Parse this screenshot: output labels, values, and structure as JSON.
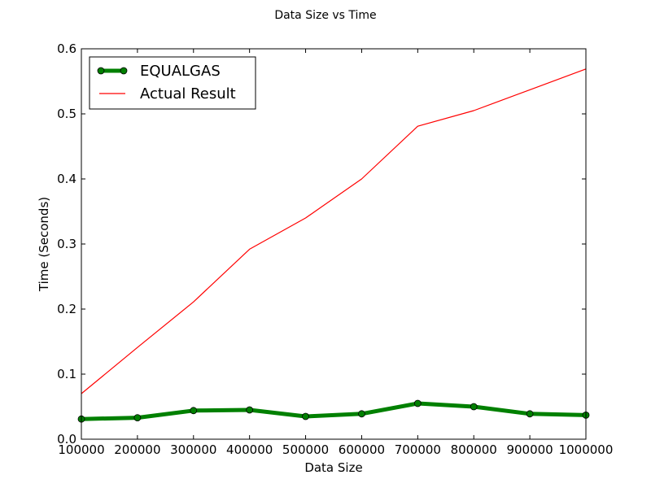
{
  "chart_data": {
    "type": "line",
    "title": "Data Size vs Time",
    "xlabel": "Data Size",
    "ylabel": "Time (Seconds)",
    "xlim": [
      100000,
      1000000
    ],
    "ylim": [
      0.0,
      0.6
    ],
    "xticks": [
      100000,
      200000,
      300000,
      400000,
      500000,
      600000,
      700000,
      800000,
      900000,
      1000000
    ],
    "xtick_labels": [
      "100000",
      "200000",
      "300000",
      "400000",
      "500000",
      "600000",
      "700000",
      "800000",
      "900000",
      "1000000"
    ],
    "yticks": [
      0.0,
      0.1,
      0.2,
      0.3,
      0.4,
      0.5,
      0.6
    ],
    "ytick_labels": [
      "0.0",
      "0.1",
      "0.2",
      "0.3",
      "0.4",
      "0.5",
      "0.6"
    ],
    "grid": false,
    "legend_position": "top-left",
    "x": [
      100000,
      200000,
      300000,
      400000,
      500000,
      600000,
      700000,
      800000,
      900000,
      1000000
    ],
    "series": [
      {
        "name": "EQUALGAS",
        "color": "#008000",
        "marker": "circle",
        "values": [
          0.031,
          0.033,
          0.044,
          0.045,
          0.035,
          0.039,
          0.055,
          0.05,
          0.039,
          0.037
        ]
      },
      {
        "name": "Actual Result",
        "color": "#ff0000",
        "marker": "none",
        "values": [
          0.07,
          0.141,
          0.211,
          0.292,
          0.34,
          0.4,
          0.481,
          0.505,
          0.537,
          0.569
        ]
      }
    ]
  }
}
